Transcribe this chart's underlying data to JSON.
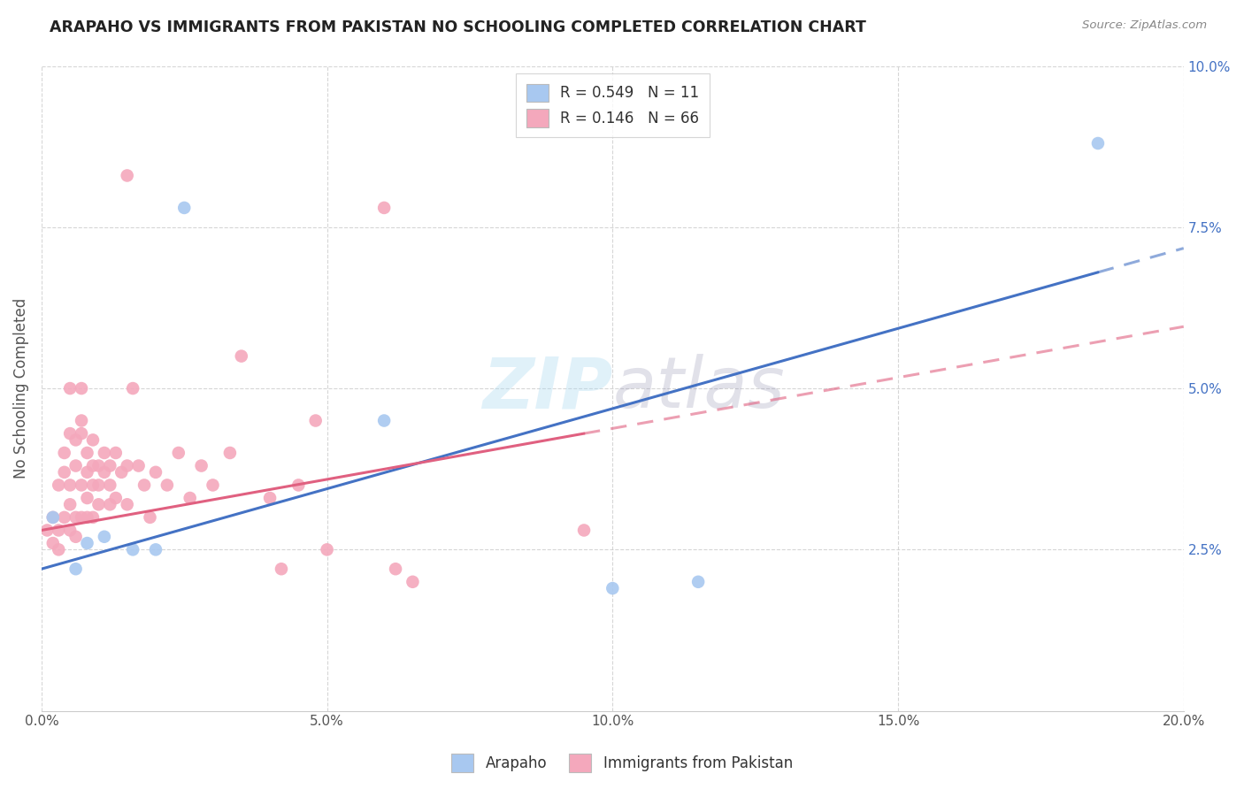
{
  "title": "ARAPAHO VS IMMIGRANTS FROM PAKISTAN NO SCHOOLING COMPLETED CORRELATION CHART",
  "source": "Source: ZipAtlas.com",
  "ylabel": "No Schooling Completed",
  "xlim": [
    0.0,
    0.2
  ],
  "ylim": [
    0.0,
    0.1
  ],
  "xticks": [
    0.0,
    0.05,
    0.1,
    0.15,
    0.2
  ],
  "yticks": [
    0.025,
    0.05,
    0.075,
    0.1
  ],
  "ytick_labels": [
    "2.5%",
    "5.0%",
    "7.5%",
    "10.0%"
  ],
  "xtick_labels": [
    "0.0%",
    "5.0%",
    "10.0%",
    "15.0%",
    "20.0%"
  ],
  "blue_R": 0.549,
  "blue_N": 11,
  "pink_R": 0.146,
  "pink_N": 66,
  "blue_color": "#A8C8F0",
  "pink_color": "#F4A8BC",
  "blue_line_color": "#4472C4",
  "pink_line_color": "#E06080",
  "blue_line": [
    [
      0.0,
      0.022
    ],
    [
      0.185,
      0.068
    ]
  ],
  "pink_line": [
    [
      0.0,
      0.028
    ],
    [
      0.095,
      0.043
    ]
  ],
  "blue_line_solid_max": 0.185,
  "pink_line_solid_max": 0.095,
  "blue_scatter": [
    [
      0.002,
      0.03
    ],
    [
      0.006,
      0.022
    ],
    [
      0.008,
      0.026
    ],
    [
      0.011,
      0.027
    ],
    [
      0.016,
      0.025
    ],
    [
      0.02,
      0.025
    ],
    [
      0.025,
      0.078
    ],
    [
      0.06,
      0.045
    ],
    [
      0.1,
      0.019
    ],
    [
      0.115,
      0.02
    ],
    [
      0.185,
      0.088
    ]
  ],
  "pink_scatter": [
    [
      0.001,
      0.028
    ],
    [
      0.002,
      0.03
    ],
    [
      0.002,
      0.026
    ],
    [
      0.003,
      0.028
    ],
    [
      0.003,
      0.025
    ],
    [
      0.003,
      0.035
    ],
    [
      0.004,
      0.04
    ],
    [
      0.004,
      0.037
    ],
    [
      0.004,
      0.03
    ],
    [
      0.005,
      0.043
    ],
    [
      0.005,
      0.035
    ],
    [
      0.005,
      0.05
    ],
    [
      0.005,
      0.028
    ],
    [
      0.005,
      0.032
    ],
    [
      0.006,
      0.042
    ],
    [
      0.006,
      0.038
    ],
    [
      0.006,
      0.03
    ],
    [
      0.006,
      0.027
    ],
    [
      0.007,
      0.045
    ],
    [
      0.007,
      0.05
    ],
    [
      0.007,
      0.043
    ],
    [
      0.007,
      0.035
    ],
    [
      0.007,
      0.03
    ],
    [
      0.008,
      0.04
    ],
    [
      0.008,
      0.037
    ],
    [
      0.008,
      0.033
    ],
    [
      0.008,
      0.03
    ],
    [
      0.009,
      0.042
    ],
    [
      0.009,
      0.038
    ],
    [
      0.009,
      0.035
    ],
    [
      0.009,
      0.03
    ],
    [
      0.01,
      0.038
    ],
    [
      0.01,
      0.035
    ],
    [
      0.01,
      0.032
    ],
    [
      0.011,
      0.04
    ],
    [
      0.011,
      0.037
    ],
    [
      0.012,
      0.038
    ],
    [
      0.012,
      0.035
    ],
    [
      0.012,
      0.032
    ],
    [
      0.013,
      0.04
    ],
    [
      0.013,
      0.033
    ],
    [
      0.014,
      0.037
    ],
    [
      0.015,
      0.083
    ],
    [
      0.015,
      0.038
    ],
    [
      0.015,
      0.032
    ],
    [
      0.016,
      0.05
    ],
    [
      0.017,
      0.038
    ],
    [
      0.018,
      0.035
    ],
    [
      0.019,
      0.03
    ],
    [
      0.02,
      0.037
    ],
    [
      0.022,
      0.035
    ],
    [
      0.024,
      0.04
    ],
    [
      0.026,
      0.033
    ],
    [
      0.028,
      0.038
    ],
    [
      0.03,
      0.035
    ],
    [
      0.033,
      0.04
    ],
    [
      0.035,
      0.055
    ],
    [
      0.04,
      0.033
    ],
    [
      0.042,
      0.022
    ],
    [
      0.045,
      0.035
    ],
    [
      0.048,
      0.045
    ],
    [
      0.06,
      0.078
    ],
    [
      0.062,
      0.022
    ],
    [
      0.065,
      0.02
    ],
    [
      0.05,
      0.025
    ],
    [
      0.095,
      0.028
    ]
  ]
}
